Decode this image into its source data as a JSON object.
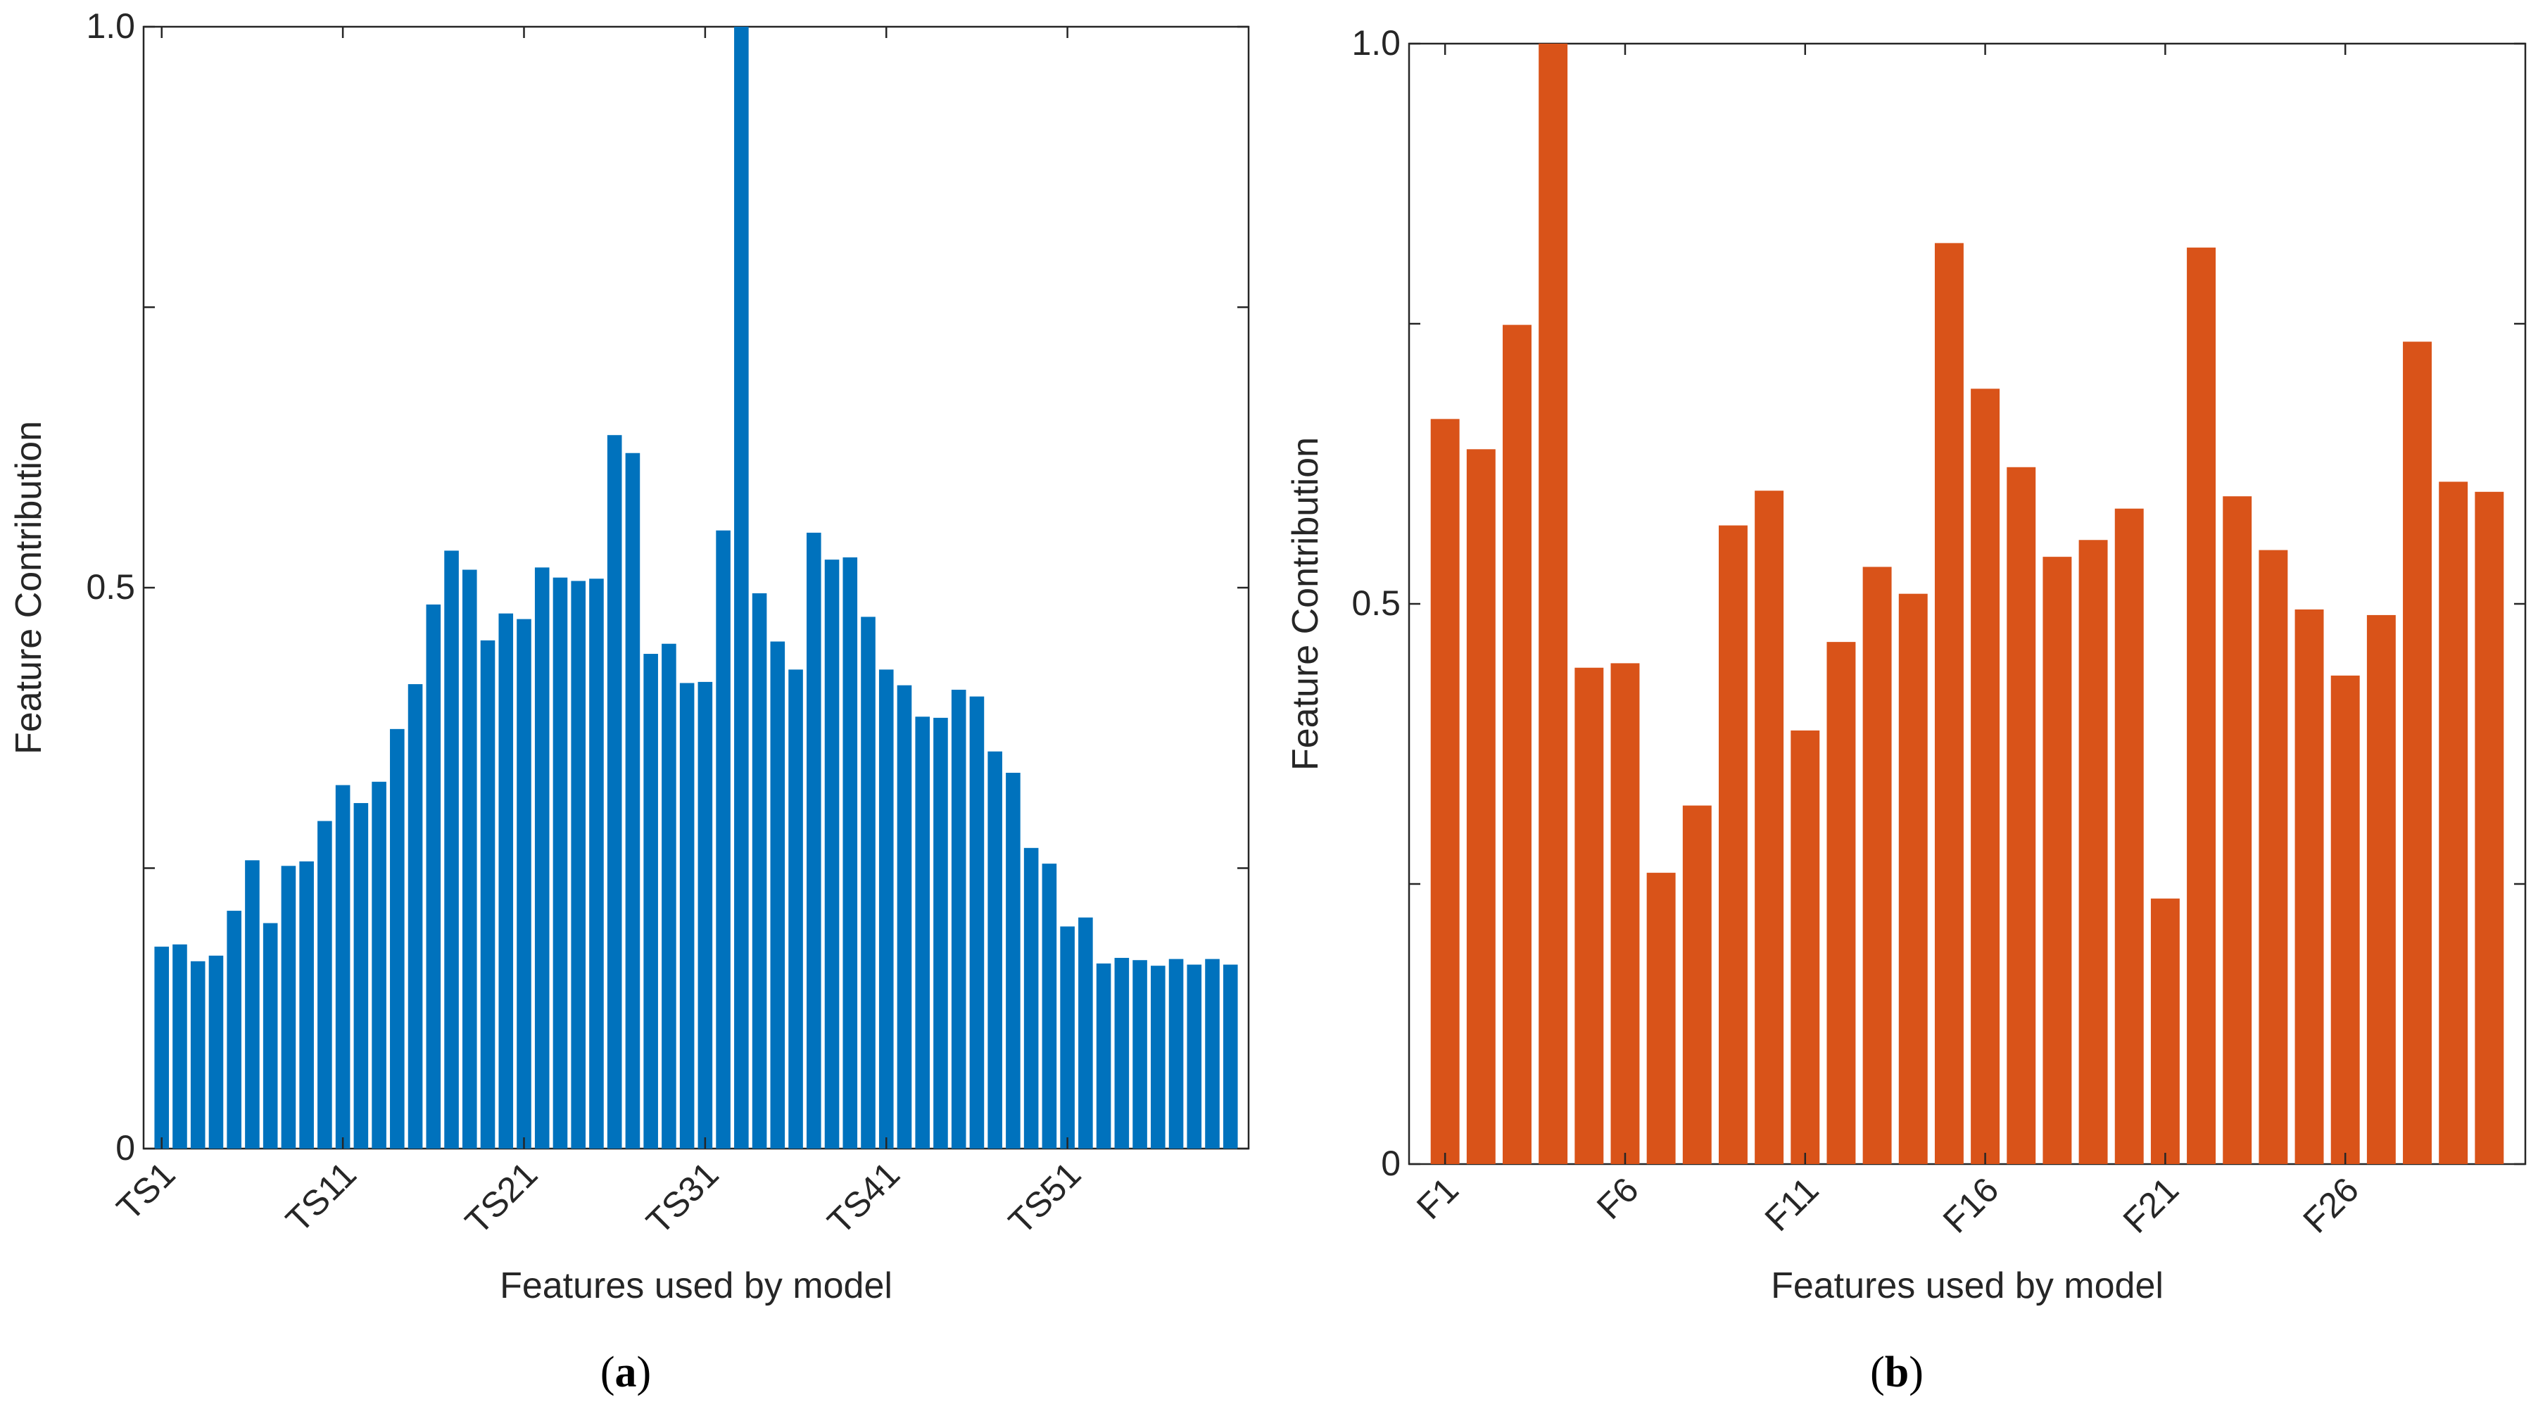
{
  "chart_data": [
    {
      "type": "bar",
      "panel_label": "(a)",
      "panel_letter": "a",
      "color": "#0072BD",
      "xlabel": "Features used by model",
      "ylabel": "Feature Contribution",
      "ylim": [
        0,
        1
      ],
      "yticks": [
        0,
        0.25,
        0.5,
        0.75,
        1
      ],
      "ytick_labels": [
        "0",
        "",
        "0.5",
        "",
        "1.0"
      ],
      "xtick_labels": [
        "TS1",
        "TS11",
        "TS21",
        "TS31",
        "TS41",
        "TS51"
      ],
      "categories": [
        "TS1",
        "TS2",
        "TS3",
        "TS4",
        "TS5",
        "TS6",
        "TS7",
        "TS8",
        "TS9",
        "TS10",
        "TS11",
        "TS12",
        "TS13",
        "TS14",
        "TS15",
        "TS16",
        "TS17",
        "TS18",
        "TS19",
        "TS20",
        "TS21",
        "TS22",
        "TS23",
        "TS24",
        "TS25",
        "TS26",
        "TS27",
        "TS28",
        "TS29",
        "TS30",
        "TS31",
        "TS32",
        "TS33",
        "TS34",
        "TS35",
        "TS36",
        "TS37",
        "TS38",
        "TS39",
        "TS40",
        "TS41",
        "TS42",
        "TS43",
        "TS44",
        "TS45",
        "TS46",
        "TS47",
        "TS48",
        "TS49",
        "TS50",
        "TS51",
        "TS52",
        "TS53",
        "TS54",
        "TS55",
        "TS56",
        "TS57",
        "TS58",
        "TS59",
        "TS60"
      ],
      "values": [
        0.18,
        0.182,
        0.167,
        0.172,
        0.212,
        0.257,
        0.201,
        0.252,
        0.256,
        0.292,
        0.324,
        0.308,
        0.327,
        0.374,
        0.414,
        0.485,
        0.533,
        0.516,
        0.453,
        0.477,
        0.472,
        0.518,
        0.509,
        0.506,
        0.508,
        0.636,
        0.62,
        0.441,
        0.45,
        0.415,
        0.416,
        0.551,
        1.0,
        0.495,
        0.452,
        0.427,
        0.549,
        0.525,
        0.527,
        0.474,
        0.427,
        0.413,
        0.385,
        0.384,
        0.409,
        0.403,
        0.354,
        0.335,
        0.268,
        0.254,
        0.198,
        0.206,
        0.165,
        0.17,
        0.168,
        0.163,
        0.169,
        0.164,
        0.169,
        0.164
      ]
    },
    {
      "type": "bar",
      "panel_label": "(b)",
      "panel_letter": "b",
      "color": "#D95319",
      "xlabel": "Features used by model",
      "ylabel": "Feature Contribution",
      "ylim": [
        0,
        1
      ],
      "yticks": [
        0,
        0.25,
        0.5,
        0.75,
        1
      ],
      "ytick_labels": [
        "0",
        "",
        "0.5",
        "",
        "1.0"
      ],
      "xtick_labels": [
        "F1",
        "F6",
        "F11",
        "F16",
        "F21",
        "F26"
      ],
      "categories": [
        "F1",
        "F2",
        "F3",
        "F4",
        "F5",
        "F6",
        "F7",
        "F8",
        "F9",
        "F10",
        "F11",
        "F12",
        "F13",
        "F14",
        "F15",
        "F16",
        "F17",
        "F18",
        "F19",
        "F20",
        "F21",
        "F22",
        "F23",
        "F24",
        "F25",
        "F26",
        "F27",
        "F28",
        "F29",
        "F30"
      ],
      "values": [
        0.665,
        0.638,
        0.749,
        1.0,
        0.443,
        0.447,
        0.26,
        0.32,
        0.57,
        0.601,
        0.387,
        0.466,
        0.533,
        0.509,
        0.822,
        0.692,
        0.622,
        0.542,
        0.557,
        0.585,
        0.237,
        0.818,
        0.596,
        0.548,
        0.495,
        0.436,
        0.49,
        0.734,
        0.609,
        0.6
      ]
    }
  ]
}
